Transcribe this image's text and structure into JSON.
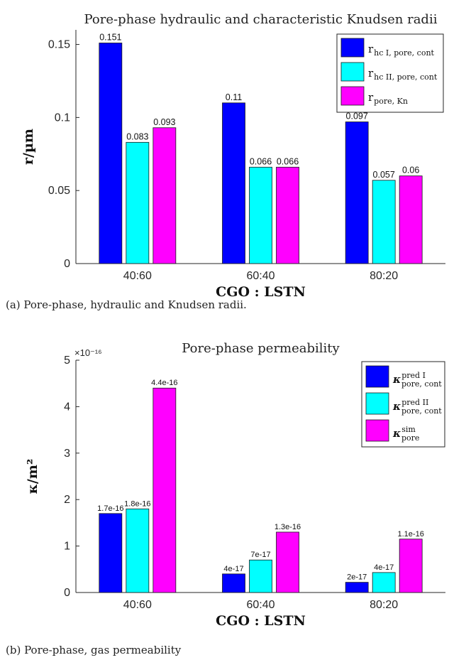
{
  "chart_data": [
    {
      "type": "bar",
      "title": "Pore-phase hydraulic and characteristic Knudsen radii",
      "xlabel": "CGO : LSTN",
      "ylabel": "r/µm",
      "categories": [
        "40:60",
        "60:40",
        "80:20"
      ],
      "ylim": [
        0,
        0.16
      ],
      "yticks": [
        "0",
        "0.05",
        "0.1",
        "0.15"
      ],
      "ytick_values": [
        0,
        0.05,
        0.1,
        0.15
      ],
      "grid": false,
      "legend_position": "top-right",
      "series": [
        {
          "name": "r hc I, pore, cont",
          "color": "#0000ff",
          "values": [
            0.151,
            0.11,
            0.097
          ],
          "labels": [
            "0.151",
            "0.11",
            "0.097"
          ]
        },
        {
          "name": "r hc II, pore, cont",
          "color": "#00ffff",
          "values": [
            0.083,
            0.066,
            0.057
          ],
          "labels": [
            "0.083",
            "0.066",
            "0.057"
          ]
        },
        {
          "name": "r pore, Kn",
          "color": "#ff00ff",
          "values": [
            0.093,
            0.066,
            0.06
          ],
          "labels": [
            "0.093",
            "0.066",
            "0.06"
          ]
        }
      ]
    },
    {
      "type": "bar",
      "title": "Pore-phase permeability",
      "xlabel": "CGO : LSTN",
      "ylabel": "κ/m²",
      "exponent_label": "×10⁻¹⁶",
      "categories": [
        "40:60",
        "60:40",
        "80:20"
      ],
      "ylim": [
        0,
        5e-16
      ],
      "yticks": [
        "0",
        "1",
        "2",
        "3",
        "4",
        "5"
      ],
      "ytick_values": [
        0,
        1e-16,
        2e-16,
        3e-16,
        4e-16,
        5e-16
      ],
      "grid": false,
      "legend_position": "top-right",
      "series": [
        {
          "name": "κ pore, cont pred I",
          "color": "#0000ff",
          "values": [
            1.7e-16,
            4e-17,
            2.2e-17
          ],
          "labels": [
            "1.7e-16",
            "4e-17",
            "2e-17"
          ]
        },
        {
          "name": "κ pore, cont pred II",
          "color": "#00ffff",
          "values": [
            1.8e-16,
            7e-17,
            4.3e-17
          ],
          "labels": [
            "1.8e-16",
            "7e-17",
            "4e-17"
          ]
        },
        {
          "name": "κ pore sim",
          "color": "#ff00ff",
          "values": [
            4.4e-16,
            1.3e-16,
            1.15e-16
          ],
          "labels": [
            "4.4e-16",
            "1.3e-16",
            "1.1e-16"
          ]
        }
      ]
    }
  ],
  "captions": {
    "a": "(a) Pore-phase, hydraulic and Knudsen radii.",
    "b": "(b) Pore-phase, gas permeability"
  },
  "legend_a": {
    "items": [
      {
        "main": "r",
        "sub": "hc I, pore, cont"
      },
      {
        "main": "r",
        "sub": "hc II, pore, cont"
      },
      {
        "main": "r",
        "sub": "pore, Kn"
      }
    ]
  },
  "legend_b": {
    "items": [
      {
        "main": "κ",
        "sup": "pred I",
        "sub": "pore, cont"
      },
      {
        "main": "κ",
        "sup": "pred II",
        "sub": "pore, cont"
      },
      {
        "main": "κ",
        "sup": "sim",
        "sub": "pore"
      }
    ]
  }
}
